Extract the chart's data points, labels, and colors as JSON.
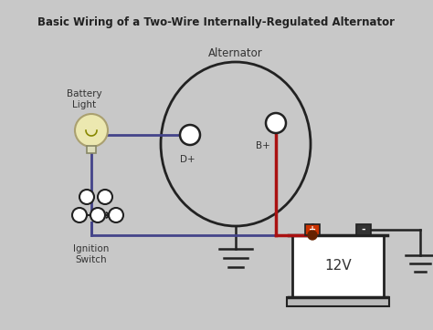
{
  "title": "Basic Wiring of a Two-Wire Internally-Regulated Alternator",
  "bg_color": "#c8c8c8",
  "wire_blue": "#44448a",
  "wire_red": "#aa1111",
  "wire_black": "#222222",
  "alternator_label": "Alternator",
  "dp_label": "D+",
  "bp_label": "B+",
  "battery_label": "Battery\nLight",
  "ignition_label": "Ignition\nSwitch",
  "voltage_label": "12V",
  "figw": 4.74,
  "figh": 3.62,
  "dpi": 100
}
